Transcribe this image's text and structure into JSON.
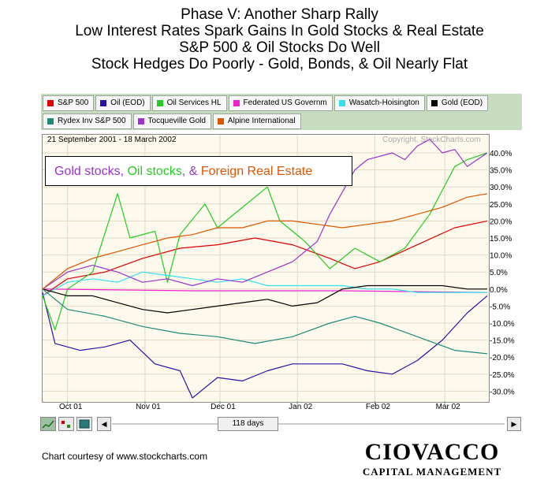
{
  "titles": [
    "Phase V: Another Sharp Rally",
    "Low Interest Rates Spark Gains In Gold Stocks & Real Estate",
    "S&P 500 & Oil Stocks Do Well",
    "Stock Hedges Do Poorly - Gold, Bonds, & Oil Nearly Flat"
  ],
  "legend_row1": [
    {
      "label": "S&P 500",
      "color": "#e00000"
    },
    {
      "label": "Oil (EOD)",
      "color": "#2a12a8"
    },
    {
      "label": "Oil Services HL",
      "color": "#22cc22"
    },
    {
      "label": "Federated US Governm",
      "color": "#ee22cc"
    },
    {
      "label": "Wasatch-Hoisington",
      "color": "#33e0ee"
    },
    {
      "label": "Gold (EOD)",
      "color": "#000000"
    }
  ],
  "legend_row2": [
    {
      "label": "Rydex Inv S&P 500",
      "color": "#1c8a78"
    },
    {
      "label": "Tocqueville Gold",
      "color": "#9933cc"
    },
    {
      "label": "Alpine International",
      "color": "#dd5500"
    }
  ],
  "date_range": "21 September 2001 - 18 March 2002",
  "copyright": "Copyright, StockCharts.com",
  "annotation": [
    {
      "text": "Gold stocks",
      "color": "#9933cc"
    },
    {
      "text": ", ",
      "color": "#9933cc"
    },
    {
      "text": "Oil stocks",
      "color": "#22cc22"
    },
    {
      "text": ", & ",
      "color": "#9933cc"
    },
    {
      "text": "Foreign Real Estate",
      "color": "#dd5500"
    }
  ],
  "scroll": {
    "days_label": "118 days"
  },
  "footer": {
    "courtesy": "Chart courtesy of www.stockcharts.com",
    "brand": "CIOVACCO",
    "brand_sub": "CAPITAL MANAGEMENT"
  },
  "chart_data": {
    "type": "line",
    "title": "",
    "xlabel": "",
    "ylabel": "",
    "ylim": [
      -34,
      44
    ],
    "y_ticks": [
      40,
      35,
      30,
      25,
      20,
      15,
      10,
      5,
      0,
      -5,
      -10,
      -15,
      -20,
      -25,
      -30
    ],
    "y_tick_labels": [
      "40.0%",
      "35.0%",
      "30.0%",
      "25.0%",
      "20.0%",
      "15.0%",
      "10.0%",
      "5.0%",
      "0.0%",
      "-5.0%",
      "-10.0%",
      "-15.0%",
      "-20.0%",
      "-25.0%",
      "-30.0%"
    ],
    "x_tick_labels": [
      "Oct 01",
      "Nov 01",
      "Dec 01",
      "Jan 02",
      "Feb 02",
      "Mar 02"
    ],
    "x_tick_days": [
      10,
      41,
      71,
      102,
      133,
      161
    ],
    "x_range_days": [
      0,
      178
    ],
    "grid": true,
    "legend": "top",
    "series": [
      {
        "name": "S&P 500",
        "color": "#e00000",
        "x": [
          0,
          10,
          25,
          40,
          55,
          70,
          85,
          100,
          115,
          125,
          135,
          150,
          165,
          178
        ],
        "values": [
          -2,
          3,
          5,
          9,
          12,
          13,
          15,
          13,
          9,
          6,
          8,
          13,
          18,
          20
        ]
      },
      {
        "name": "Oil (EOD)",
        "color": "#2a12a8",
        "x": [
          0,
          5,
          15,
          25,
          35,
          45,
          55,
          60,
          70,
          80,
          90,
          100,
          110,
          120,
          130,
          140,
          150,
          160,
          170,
          178
        ],
        "values": [
          -1,
          -16,
          -18,
          -17,
          -15,
          -22,
          -24,
          -32,
          -26,
          -27,
          -24,
          -22,
          -22,
          -22,
          -24,
          -25,
          -21,
          -15,
          -7,
          -2
        ]
      },
      {
        "name": "Oil Services HL",
        "color": "#22cc22",
        "x": [
          0,
          5,
          10,
          20,
          30,
          35,
          45,
          50,
          55,
          65,
          70,
          80,
          90,
          95,
          105,
          115,
          125,
          135,
          145,
          155,
          165,
          170,
          178
        ],
        "values": [
          -2,
          -12,
          0,
          5,
          28,
          15,
          17,
          2,
          16,
          25,
          18,
          24,
          30,
          20,
          14,
          6,
          12,
          8,
          12,
          22,
          36,
          38,
          40
        ]
      },
      {
        "name": "Federated US Governm",
        "color": "#ee22cc",
        "x": [
          0,
          60,
          120,
          178
        ],
        "values": [
          0,
          -0.5,
          -0.5,
          -1
        ]
      },
      {
        "name": "Wasatch-Hoisington",
        "color": "#33e0ee",
        "x": [
          0,
          10,
          20,
          30,
          40,
          50,
          60,
          70,
          80,
          90,
          100,
          110,
          120,
          130,
          140,
          150,
          160,
          170,
          178
        ],
        "values": [
          -2,
          2,
          3,
          2,
          5,
          4,
          3,
          2,
          3,
          1,
          1,
          1,
          1,
          0,
          0,
          -1,
          -1,
          -1,
          -1
        ]
      },
      {
        "name": "Gold (EOD)",
        "color": "#000000",
        "x": [
          0,
          10,
          20,
          30,
          40,
          50,
          60,
          70,
          80,
          90,
          100,
          110,
          120,
          130,
          140,
          150,
          160,
          170,
          178
        ],
        "values": [
          0,
          -2,
          -2,
          -4,
          -6,
          -7,
          -6,
          -5,
          -4,
          -3,
          -5,
          -4,
          0,
          1,
          1,
          1,
          1,
          0,
          0
        ]
      },
      {
        "name": "Rydex Inv S&P 500",
        "color": "#1c8a78",
        "x": [
          0,
          10,
          25,
          40,
          55,
          70,
          85,
          100,
          115,
          125,
          135,
          150,
          165,
          178
        ],
        "values": [
          0,
          -6,
          -8,
          -11,
          -13,
          -14,
          -16,
          -14,
          -10,
          -8,
          -10,
          -14,
          -18,
          -19
        ]
      },
      {
        "name": "Tocqueville Gold",
        "color": "#9933cc",
        "x": [
          0,
          10,
          20,
          30,
          40,
          50,
          60,
          70,
          80,
          90,
          100,
          110,
          115,
          125,
          130,
          140,
          145,
          150,
          155,
          160,
          165,
          170,
          178
        ],
        "values": [
          0,
          5,
          7,
          5,
          2,
          3,
          1,
          3,
          2,
          5,
          8,
          14,
          22,
          35,
          38,
          40,
          38,
          42,
          44,
          40,
          41,
          36,
          40
        ]
      },
      {
        "name": "Alpine International",
        "color": "#dd5500",
        "x": [
          0,
          10,
          20,
          30,
          40,
          50,
          60,
          70,
          80,
          90,
          100,
          110,
          120,
          130,
          140,
          150,
          160,
          170,
          178
        ],
        "values": [
          0,
          6,
          9,
          11,
          13,
          15,
          16,
          18,
          18,
          20,
          20,
          19,
          18,
          19,
          20,
          22,
          24,
          27,
          28
        ]
      }
    ]
  }
}
